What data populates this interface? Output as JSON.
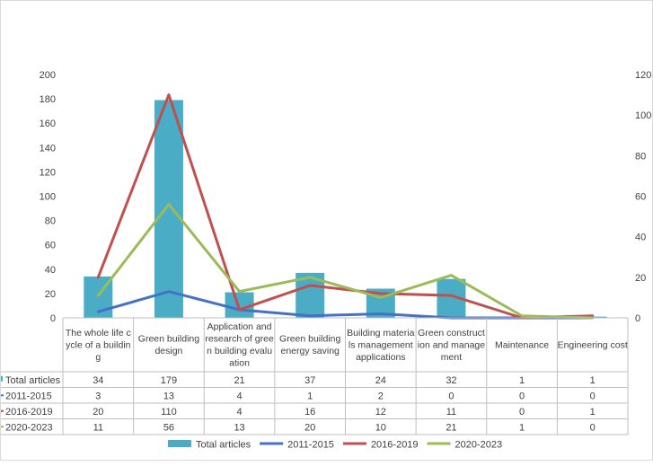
{
  "chart_data": {
    "type": "bar",
    "categories": [
      "The whole life cycle of a building",
      "Green building design",
      "Application and research of green building evaluation",
      "Green building energy saving",
      "Building materials management applications",
      "Green construction and management",
      "Maintenance",
      "Engineering cost"
    ],
    "category_lines": [
      [
        "The whole life c",
        "ycle of a buildin",
        "g"
      ],
      [
        "Green building",
        "design"
      ],
      [
        "Application and",
        "research of gree",
        "n building evalu",
        "ation"
      ],
      [
        "Green building",
        "energy saving"
      ],
      [
        "Building materia",
        "ls management",
        "applications"
      ],
      [
        "Green construct",
        "ion and manage",
        "ment"
      ],
      [
        "Maintenance"
      ],
      [
        "Engineering cost"
      ]
    ],
    "series": [
      {
        "name": "Total articles",
        "type": "bar",
        "axis": "left",
        "color": "#4bacc6",
        "values": [
          34,
          179,
          21,
          37,
          24,
          32,
          1,
          1
        ]
      },
      {
        "name": "2011-2015",
        "type": "line",
        "axis": "right",
        "color": "#4472c4",
        "values": [
          3,
          13,
          4,
          1,
          2,
          0,
          0,
          0
        ]
      },
      {
        "name": "2016-2019",
        "type": "line",
        "axis": "right",
        "color": "#c0504d",
        "values": [
          20,
          110,
          4,
          16,
          12,
          11,
          0,
          1
        ]
      },
      {
        "name": "2020-2023",
        "type": "line",
        "axis": "right",
        "color": "#9bbb59",
        "values": [
          11,
          56,
          13,
          20,
          10,
          21,
          1,
          0
        ]
      }
    ],
    "y_left": {
      "min": 0,
      "max": 200,
      "ticks": [
        "0",
        "20",
        "40",
        "60",
        "80",
        "100",
        "120",
        "140",
        "160",
        "180",
        "200"
      ]
    },
    "y_right": {
      "min": 0,
      "max": 120,
      "ticks": [
        "0",
        "20",
        "40",
        "60",
        "80",
        "100",
        "120"
      ]
    },
    "data_table": true,
    "legend_position": "bottom"
  }
}
